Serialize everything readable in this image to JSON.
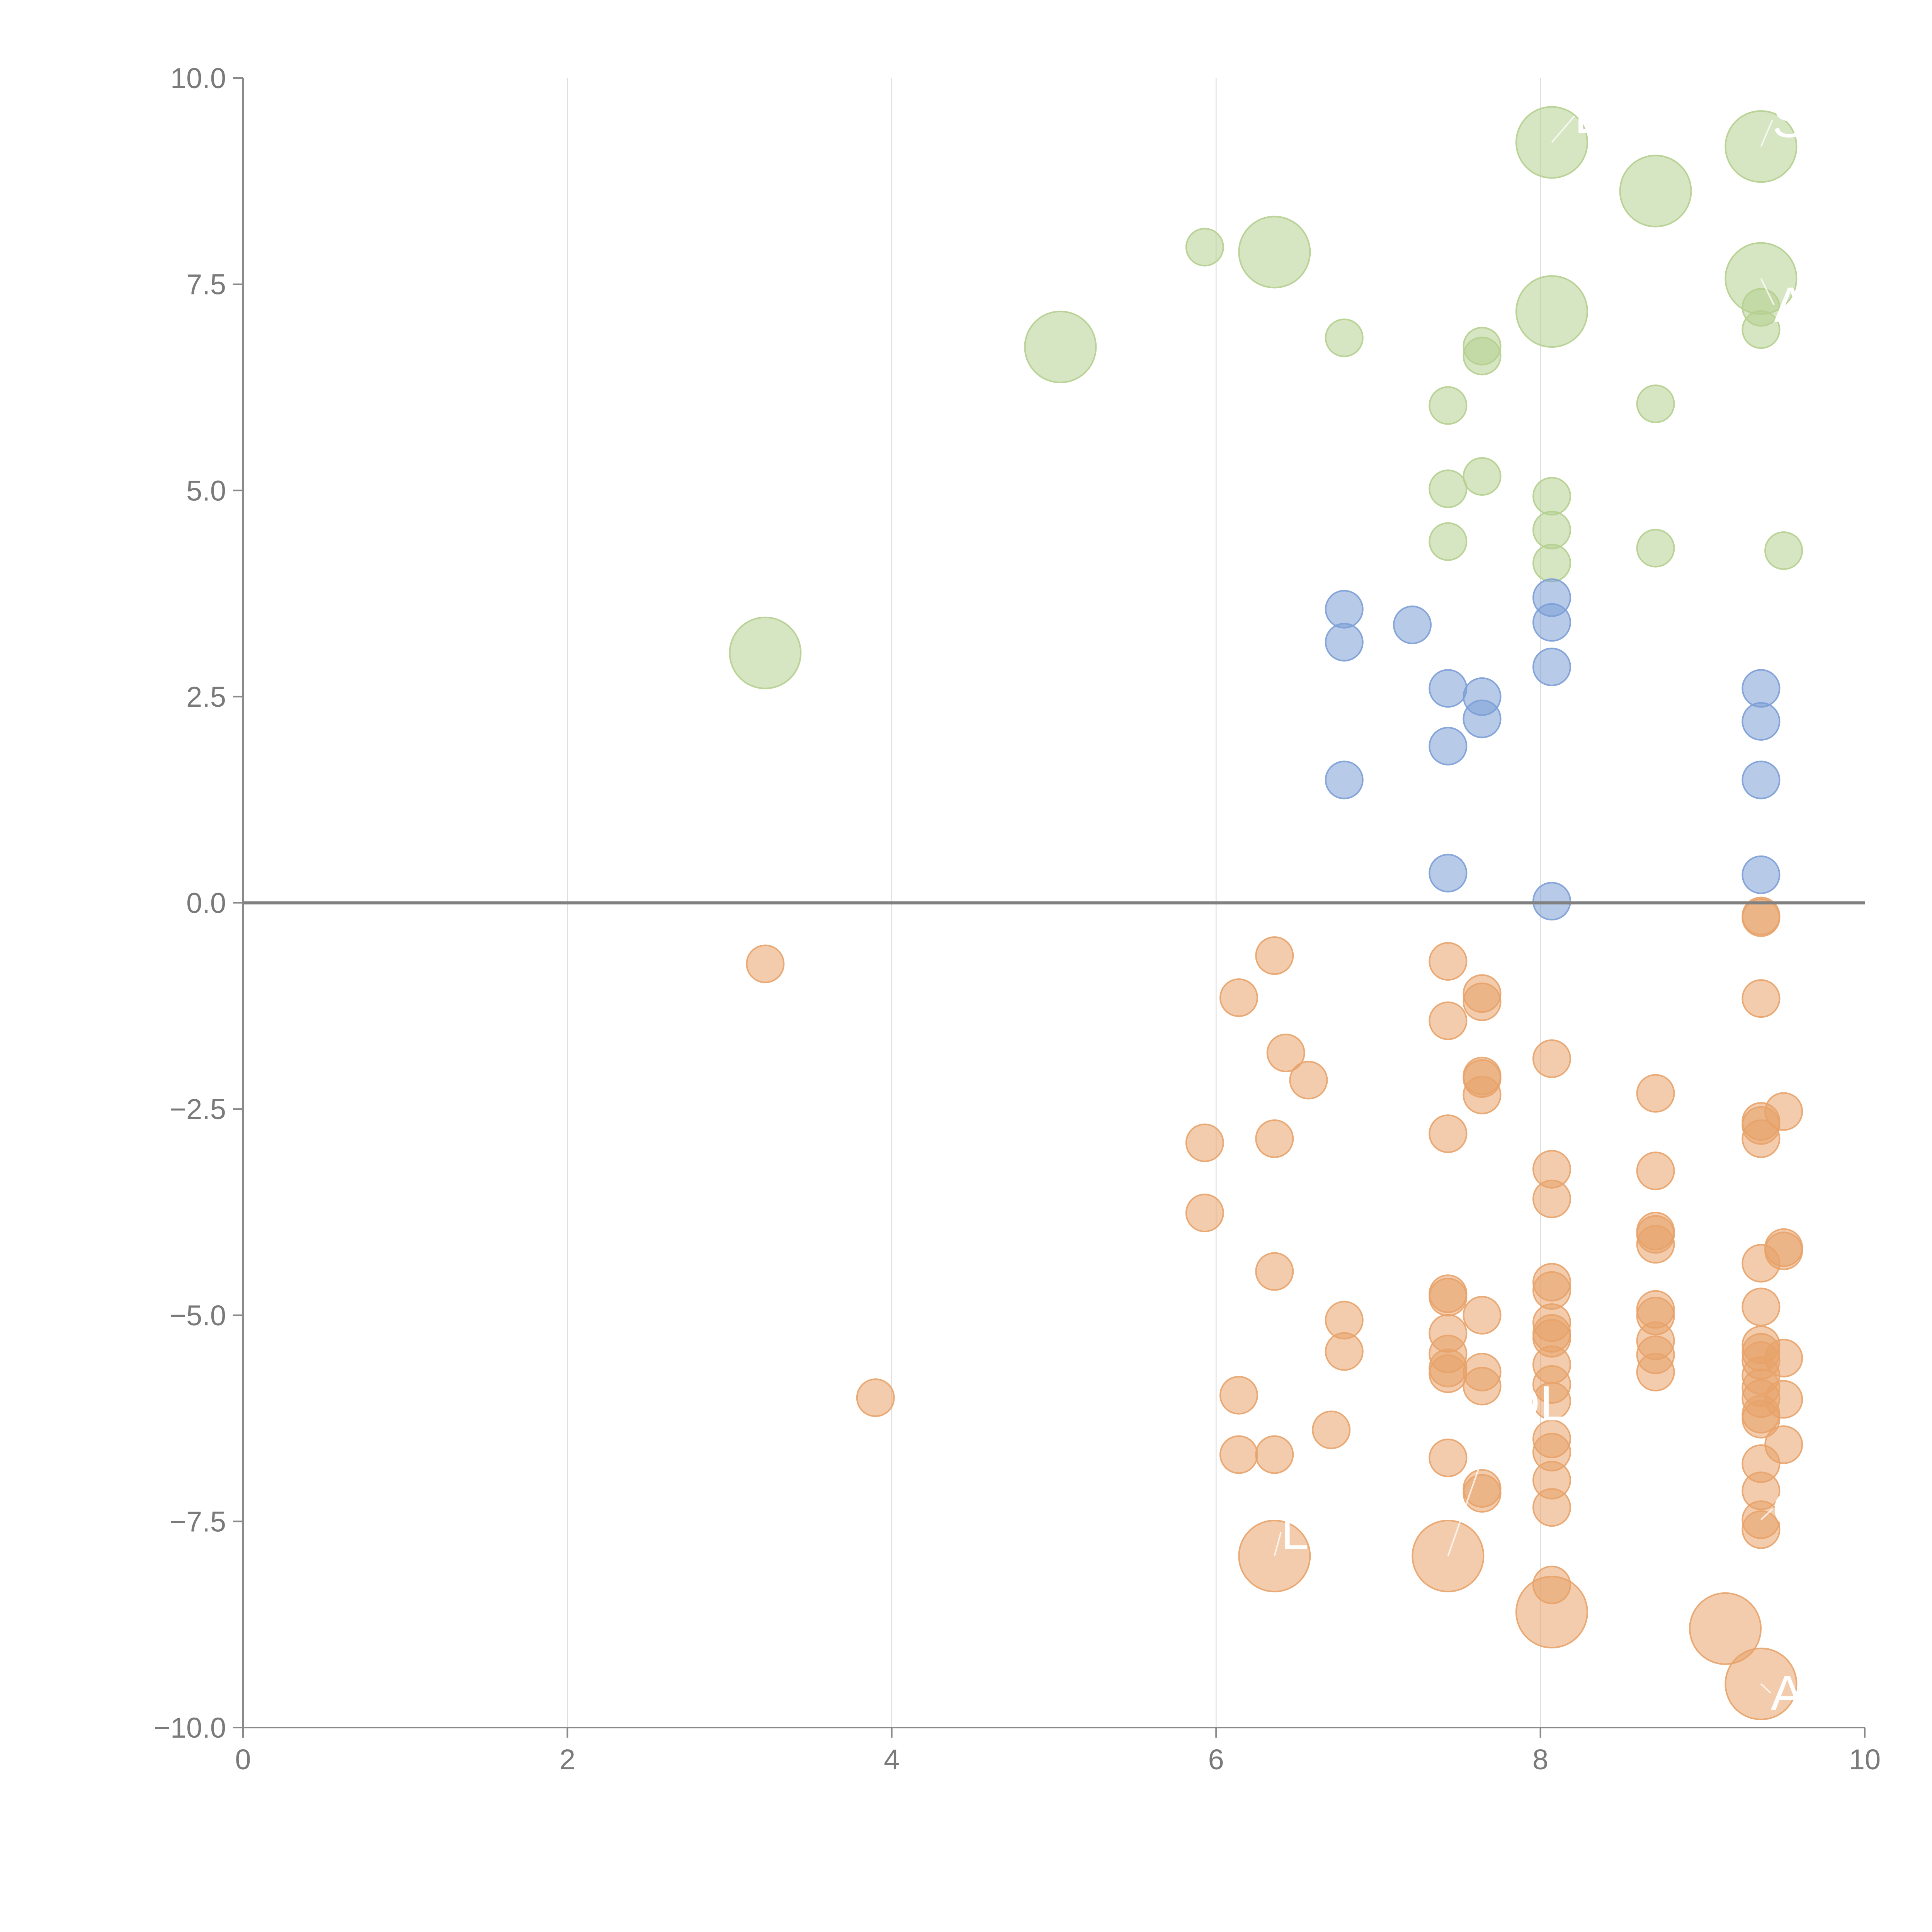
{
  "chart_data": {
    "type": "scatter",
    "title": "",
    "xlabel": "",
    "ylabel": "",
    "xlim": [
      0,
      10
    ],
    "ylim": [
      -10,
      10
    ],
    "grid": "vertical",
    "x_ticks": [
      "0",
      "2",
      "4",
      "6",
      "8",
      "10"
    ],
    "y_ticks": [
      "10.0",
      "7.5",
      "5.0",
      "2.5",
      "0.0",
      "−2.5",
      "−5.0",
      "−7.5",
      "−10.0"
    ],
    "reference_line": 0,
    "colors": {
      "green": "#b5cf8f",
      "blue": "#7c9fd6",
      "orange": "#e8a36a",
      "axis": "#8a8a8a",
      "grid": "#dcdcdc"
    },
    "series": [
      {
        "name": "green",
        "points": [
          [
            8.07,
            9.22,
            2
          ],
          [
            9.36,
            9.17,
            2
          ],
          [
            8.71,
            8.63,
            2
          ],
          [
            6.36,
            7.89,
            2
          ],
          [
            5.93,
            7.95,
            1
          ],
          [
            9.36,
            7.57,
            2
          ],
          [
            8.07,
            7.17,
            2
          ],
          [
            9.36,
            7.22,
            1
          ],
          [
            9.36,
            6.95,
            1
          ],
          [
            5.04,
            6.74,
            2
          ],
          [
            6.79,
            6.85,
            1
          ],
          [
            7.64,
            6.75,
            1
          ],
          [
            7.64,
            6.63,
            1
          ],
          [
            7.43,
            6.03,
            1
          ],
          [
            8.71,
            6.05,
            1
          ],
          [
            7.64,
            5.17,
            1
          ],
          [
            7.43,
            5.02,
            1
          ],
          [
            8.07,
            4.93,
            1
          ],
          [
            8.07,
            4.52,
            1
          ],
          [
            7.43,
            4.38,
            1
          ],
          [
            8.71,
            4.3,
            1
          ],
          [
            9.5,
            4.27,
            1
          ],
          [
            8.07,
            4.12,
            1
          ],
          [
            3.22,
            3.03,
            2
          ]
        ]
      },
      {
        "name": "blue",
        "points": [
          [
            8.07,
            3.7,
            1
          ],
          [
            6.79,
            3.56,
            1
          ],
          [
            8.07,
            3.4,
            1
          ],
          [
            7.21,
            3.37,
            1
          ],
          [
            6.79,
            3.16,
            1
          ],
          [
            8.07,
            2.86,
            1
          ],
          [
            7.43,
            2.6,
            1
          ],
          [
            9.36,
            2.6,
            1
          ],
          [
            7.64,
            2.5,
            1
          ],
          [
            7.64,
            2.23,
            1
          ],
          [
            9.36,
            2.2,
            1
          ],
          [
            7.43,
            1.9,
            1
          ],
          [
            6.79,
            1.49,
            1
          ],
          [
            9.36,
            1.49,
            1
          ],
          [
            7.43,
            0.36,
            1
          ],
          [
            9.36,
            0.34,
            1
          ],
          [
            8.07,
            0.02,
            1
          ]
        ]
      },
      {
        "name": "orange",
        "points": [
          [
            9.36,
            -0.16,
            1
          ],
          [
            9.36,
            -0.18,
            1
          ],
          [
            6.36,
            -0.64,
            1
          ],
          [
            3.22,
            -0.74,
            1
          ],
          [
            7.43,
            -0.71,
            1
          ],
          [
            7.64,
            -1.1,
            1
          ],
          [
            7.64,
            -1.2,
            1
          ],
          [
            6.14,
            -1.15,
            1
          ],
          [
            9.36,
            -1.16,
            1
          ],
          [
            7.43,
            -1.43,
            1
          ],
          [
            6.43,
            -1.82,
            1
          ],
          [
            8.07,
            -1.89,
            1
          ],
          [
            7.64,
            -2.1,
            1
          ],
          [
            7.64,
            -2.13,
            1
          ],
          [
            6.57,
            -2.15,
            1
          ],
          [
            7.64,
            -2.33,
            1
          ],
          [
            8.71,
            -2.31,
            1
          ],
          [
            9.5,
            -2.53,
            1
          ],
          [
            9.36,
            -2.65,
            1
          ],
          [
            9.36,
            -2.7,
            1
          ],
          [
            7.43,
            -2.8,
            1
          ],
          [
            6.36,
            -2.86,
            1
          ],
          [
            9.36,
            -2.86,
            1
          ],
          [
            5.93,
            -2.91,
            1
          ],
          [
            8.07,
            -3.23,
            1
          ],
          [
            8.71,
            -3.25,
            1
          ],
          [
            8.07,
            -3.59,
            1
          ],
          [
            5.93,
            -3.76,
            1
          ],
          [
            8.71,
            -3.98,
            1
          ],
          [
            8.71,
            -4.02,
            1
          ],
          [
            8.71,
            -4.14,
            1
          ],
          [
            9.5,
            -4.18,
            1
          ],
          [
            9.5,
            -4.22,
            1
          ],
          [
            9.36,
            -4.37,
            1
          ],
          [
            6.36,
            -4.47,
            1
          ],
          [
            8.07,
            -4.6,
            1
          ],
          [
            8.07,
            -4.7,
            1
          ],
          [
            7.43,
            -4.74,
            1
          ],
          [
            7.43,
            -4.78,
            1
          ],
          [
            9.36,
            -4.9,
            1
          ],
          [
            8.71,
            -4.93,
            1
          ],
          [
            7.64,
            -5.0,
            1
          ],
          [
            8.71,
            -5.01,
            1
          ],
          [
            6.79,
            -5.06,
            1
          ],
          [
            8.07,
            -5.09,
            1
          ],
          [
            7.43,
            -5.22,
            1
          ],
          [
            8.07,
            -5.22,
            1
          ],
          [
            8.07,
            -5.28,
            1
          ],
          [
            8.71,
            -5.31,
            1
          ],
          [
            9.36,
            -5.36,
            1
          ],
          [
            9.36,
            -5.45,
            1
          ],
          [
            8.71,
            -5.48,
            1
          ],
          [
            6.79,
            -5.44,
            1
          ],
          [
            7.43,
            -5.47,
            1
          ],
          [
            9.5,
            -5.52,
            1
          ],
          [
            9.36,
            -5.55,
            1
          ],
          [
            8.07,
            -5.6,
            1
          ],
          [
            7.43,
            -5.64,
            1
          ],
          [
            7.64,
            -5.69,
            1
          ],
          [
            8.71,
            -5.69,
            1
          ],
          [
            7.43,
            -5.71,
            1
          ],
          [
            9.36,
            -5.73,
            1
          ],
          [
            8.07,
            -5.84,
            1
          ],
          [
            7.64,
            -5.86,
            1
          ],
          [
            9.36,
            -5.88,
            1
          ],
          [
            3.9,
            -6.0,
            1
          ],
          [
            6.14,
            -5.97,
            1
          ],
          [
            9.36,
            -6.01,
            1
          ],
          [
            9.5,
            -6.02,
            1
          ],
          [
            8.07,
            -6.04,
            1
          ],
          [
            9.36,
            -6.2,
            1
          ],
          [
            9.36,
            -6.26,
            1
          ],
          [
            6.71,
            -6.39,
            1
          ],
          [
            8.07,
            -6.5,
            1
          ],
          [
            9.5,
            -6.57,
            1
          ],
          [
            8.07,
            -6.66,
            1
          ],
          [
            6.14,
            -6.69,
            1
          ],
          [
            6.36,
            -6.69,
            1
          ],
          [
            7.43,
            -6.73,
            1
          ],
          [
            9.36,
            -6.8,
            1
          ],
          [
            8.07,
            -7.0,
            1
          ],
          [
            7.64,
            -7.1,
            1
          ],
          [
            7.64,
            -7.16,
            1
          ],
          [
            9.36,
            -7.13,
            1
          ],
          [
            8.07,
            -7.33,
            1
          ],
          [
            9.36,
            -7.48,
            1
          ],
          [
            9.36,
            -7.6,
            1
          ],
          [
            6.36,
            -7.92,
            2
          ],
          [
            7.43,
            -7.92,
            2
          ],
          [
            8.07,
            -8.27,
            1
          ],
          [
            8.07,
            -8.6,
            2
          ],
          [
            9.14,
            -8.8,
            2
          ],
          [
            9.36,
            -9.47,
            2
          ]
        ]
      }
    ],
    "labels": [
      {
        "text": "L",
        "x": 8.21,
        "y": 9.54,
        "px": 8.07,
        "py": 9.22
      },
      {
        "text": "SK",
        "x": 9.43,
        "y": 9.49,
        "px": 9.36,
        "py": 9.17
      },
      {
        "text": "A",
        "x": 9.44,
        "y": 7.25,
        "px": 9.36,
        "py": 7.57
      },
      {
        "text": "OL",
        "x": 7.76,
        "y": -6.07,
        "px": 7.43,
        "py": -7.92
      },
      {
        "text": "OT",
        "x": 9.43,
        "y": -7.35,
        "px": 9.36,
        "py": -7.48
      },
      {
        "text": "L",
        "x": 6.4,
        "y": -7.63,
        "px": 6.36,
        "py": -7.92
      },
      {
        "text": "API",
        "x": 9.42,
        "y": -9.58,
        "px": 9.36,
        "py": -9.47
      }
    ]
  }
}
